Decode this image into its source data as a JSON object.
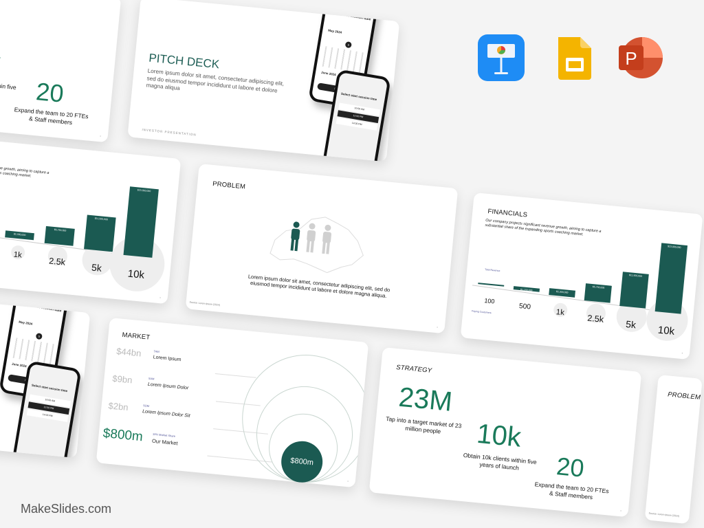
{
  "brand": "MakeSlides.com",
  "apps": [
    {
      "name": "Keynote",
      "icon": "keynote-icon",
      "color": "#1e8cf5"
    },
    {
      "name": "Google Slides",
      "icon": "google-slides-icon",
      "color": "#f4b400"
    },
    {
      "name": "PowerPoint",
      "icon": "powerpoint-icon",
      "color": "#c43e1c"
    }
  ],
  "colors": {
    "accent_green": "#1a7a5a",
    "bar_green": "#1b5a52",
    "title_teal": "#1e5e55"
  },
  "strategy": {
    "title": "STRATEGY",
    "stats": [
      {
        "value": "23M",
        "caption": "Tap into a target market of 23 million people"
      },
      {
        "value": "10k",
        "caption": "Obtain 10k clients within five years of launch"
      },
      {
        "value": "20",
        "caption": "Expand the team to 20 FTEs & Staff members"
      }
    ]
  },
  "pitch": {
    "title": "PITCH DECK",
    "description": "Lorem ipsum dolor sit amet, consectetur adipiscing elit, sed do eiusmod tempor incididunt ut labore et dolore magna aliqua",
    "footer": "INVESTOR PRESENTATION",
    "phone1": {
      "heading": "Select start session date",
      "month1": "May 2024",
      "month2": "June 2024",
      "selected_day": "5",
      "button": "Next"
    },
    "phone2": {
      "heading": "Select start session time",
      "times": [
        "10:00 AM",
        "12:00 PM",
        "14:00 PM"
      ]
    }
  },
  "problem": {
    "title": "PROBLEM",
    "text": "Lorem ipsum dolor sit amet, consectetur adipiscing elit, sed do eiusmod tempor incididunt ut labore et dolore magna aliqua.",
    "source": "Source: Lorem Ipsum (2024)",
    "people_highlighted": 1,
    "people_total": 3
  },
  "financials": {
    "title": "FINANCIALS",
    "description": "Our company projects significant revenue growth, aiming to capture a substantial share of the expanding sports coaching market.",
    "revenue_label": "Total Revenue",
    "customers_label": "Paying Customers",
    "categories": [
      "100",
      "500",
      "1k",
      "2.5k",
      "5k",
      "10k"
    ],
    "revenue": [
      230000,
      1150000,
      2300000,
      5750000,
      11500000,
      23000000
    ],
    "bar_labels": [
      "",
      "$1,150,000",
      "$2,300,000",
      "$5,750,000",
      "$11,500,000",
      "$23,000,000"
    ]
  },
  "market": {
    "title": "MARKET",
    "rows": [
      {
        "value": "$44bn",
        "tag": "TAM",
        "label": "Lorem Ipsum"
      },
      {
        "value": "$9bn",
        "tag": "SAM",
        "label": "Lorem Ipsum Dolor"
      },
      {
        "value": "$2bn",
        "tag": "SOM",
        "label": "Lorem Ipsum Dolor Sit"
      },
      {
        "value": "$800m",
        "tag": "10% Market Share",
        "label": "Our Market"
      }
    ],
    "bubble_value": "$800m"
  }
}
